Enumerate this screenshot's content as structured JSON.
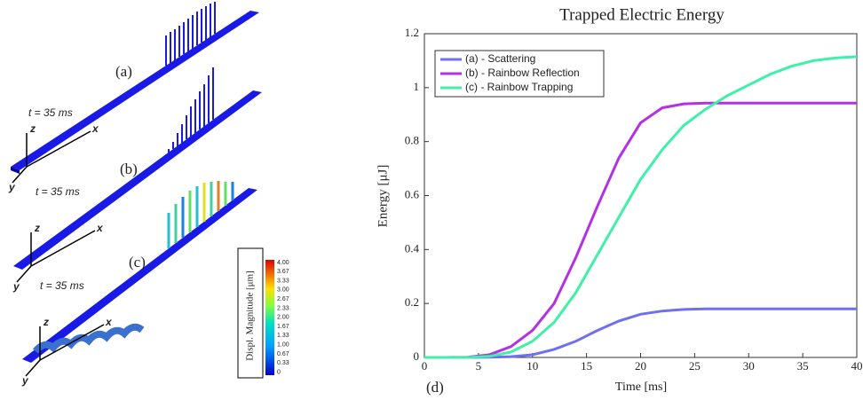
{
  "chart_data": {
    "type": "line",
    "title": "Trapped Electric Energy",
    "x_label": "Time [ms]",
    "y_label": "Energy [μJ]",
    "panel_label": "(d)",
    "x": [
      0,
      2,
      4,
      6,
      8,
      10,
      12,
      14,
      16,
      18,
      20,
      22,
      24,
      26,
      28,
      30,
      32,
      34,
      36,
      38,
      40
    ],
    "series": [
      {
        "name": "(a) - Scattering",
        "color": "#6f6ff2",
        "values": [
          0,
          0,
          0,
          0.001,
          0.003,
          0.01,
          0.03,
          0.06,
          0.1,
          0.135,
          0.16,
          0.172,
          0.178,
          0.18,
          0.18,
          0.18,
          0.18,
          0.18,
          0.18,
          0.18,
          0.18
        ]
      },
      {
        "name": "(b) - Rainbow Reflection",
        "color": "#b430e6",
        "values": [
          0,
          0,
          0.001,
          0.01,
          0.04,
          0.1,
          0.2,
          0.37,
          0.56,
          0.74,
          0.87,
          0.925,
          0.94,
          0.943,
          0.943,
          0.943,
          0.943,
          0.943,
          0.943,
          0.943,
          0.943
        ]
      },
      {
        "name": "(c) - Rainbow Trapping",
        "color": "#3ef0a8",
        "values": [
          0,
          0,
          0,
          0.004,
          0.02,
          0.06,
          0.13,
          0.24,
          0.38,
          0.52,
          0.66,
          0.77,
          0.86,
          0.92,
          0.97,
          1.01,
          1.05,
          1.08,
          1.1,
          1.11,
          1.115
        ]
      }
    ],
    "xlim": [
      0,
      40
    ],
    "xticks": [
      0,
      5,
      10,
      15,
      20,
      25,
      30,
      35,
      40
    ],
    "ylim": [
      0,
      1.2
    ],
    "yticks": [
      0,
      0.2,
      0.4,
      0.6,
      0.8,
      1,
      1.2
    ],
    "legend": "upper-left"
  },
  "left_figure": {
    "panels": [
      "(a)",
      "(b)",
      "(c)"
    ],
    "time_labels": [
      "t = 35 ms",
      "t = 35 ms",
      "t = 35 ms"
    ],
    "axes": [
      "z",
      "x",
      "y"
    ],
    "colorbar_title": "Displ. Magnitude [μm]",
    "colorbar_ticks": [
      "4.00",
      "3.67",
      "3.33",
      "3.00",
      "2.67",
      "2.33",
      "2.00",
      "1.67",
      "1.33",
      "1.00",
      "0.67",
      "0.33",
      "0"
    ]
  }
}
